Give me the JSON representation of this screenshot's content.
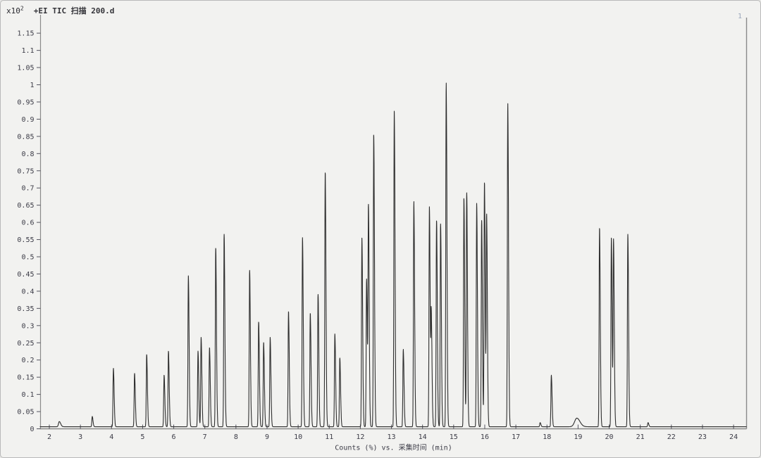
{
  "header": {
    "scale_label": "x10",
    "scale_exponent": "2",
    "title": "+EI TIC 扫描 200.d"
  },
  "pane": {
    "number": "1"
  },
  "axes": {
    "x": {
      "label": "Counts (%) vs. 采集时间 (min)",
      "min": 1.705,
      "max": 24.41,
      "ticks": [
        2,
        3,
        4,
        5,
        6,
        7,
        8,
        9,
        10,
        11,
        12,
        13,
        14,
        15,
        16,
        17,
        18,
        19,
        20,
        21,
        22,
        23,
        24
      ]
    },
    "y": {
      "min": 0,
      "max": 1.198,
      "ticks": [
        {
          "v": 0,
          "label": "0"
        },
        {
          "v": 0.05,
          "label": "0.05"
        },
        {
          "v": 0.1,
          "label": "0.1"
        },
        {
          "v": 0.15,
          "label": "0.15"
        },
        {
          "v": 0.2,
          "label": "0.2"
        },
        {
          "v": 0.25,
          "label": "0.25"
        },
        {
          "v": 0.3,
          "label": "0.3"
        },
        {
          "v": 0.35,
          "label": "0.35"
        },
        {
          "v": 0.4,
          "label": "0.4"
        },
        {
          "v": 0.45,
          "label": "0.45"
        },
        {
          "v": 0.5,
          "label": "0.5"
        },
        {
          "v": 0.55,
          "label": "0.55"
        },
        {
          "v": 0.6,
          "label": "0.6"
        },
        {
          "v": 0.65,
          "label": "0.65"
        },
        {
          "v": 0.7,
          "label": "0.7"
        },
        {
          "v": 0.75,
          "label": "0.75"
        },
        {
          "v": 0.8,
          "label": "0.8"
        },
        {
          "v": 0.85,
          "label": "0.85"
        },
        {
          "v": 0.9,
          "label": "0.9"
        },
        {
          "v": 0.95,
          "label": "0.95"
        },
        {
          "v": 1,
          "label": "1"
        },
        {
          "v": 1.05,
          "label": "1.05"
        },
        {
          "v": 1.1,
          "label": "1.1"
        },
        {
          "v": 1.15,
          "label": "1.15"
        }
      ]
    }
  },
  "chart_data": {
    "type": "line",
    "title": "+EI TIC 扫描 200.d",
    "xlabel": "Counts (%) vs. 采集时间 (min)",
    "ylabel": "Counts (%), x10^2",
    "x_range": [
      1.705,
      24.41
    ],
    "y_range": [
      0,
      1.198
    ],
    "grid": false,
    "baseline": 0.006,
    "sigma_left": 0.013,
    "sigma_right": 0.024,
    "peaks": [
      {
        "rt": 2.32,
        "h": 0.015,
        "sl": 0.025,
        "sr": 0.045
      },
      {
        "rt": 3.38,
        "h": 0.03
      },
      {
        "rt": 4.06,
        "h": 0.17
      },
      {
        "rt": 4.74,
        "h": 0.155
      },
      {
        "rt": 5.13,
        "h": 0.21
      },
      {
        "rt": 5.69,
        "h": 0.15
      },
      {
        "rt": 5.83,
        "h": 0.22
      },
      {
        "rt": 6.47,
        "h": 0.44
      },
      {
        "rt": 6.78,
        "h": 0.22
      },
      {
        "rt": 6.88,
        "h": 0.26
      },
      {
        "rt": 7.15,
        "h": 0.23
      },
      {
        "rt": 7.35,
        "h": 0.52
      },
      {
        "rt": 7.62,
        "h": 0.56
      },
      {
        "rt": 8.44,
        "h": 0.455
      },
      {
        "rt": 8.73,
        "h": 0.305
      },
      {
        "rt": 8.89,
        "h": 0.245
      },
      {
        "rt": 9.1,
        "h": 0.26
      },
      {
        "rt": 9.69,
        "h": 0.335
      },
      {
        "rt": 10.14,
        "h": 0.55
      },
      {
        "rt": 10.39,
        "h": 0.33
      },
      {
        "rt": 10.64,
        "h": 0.385
      },
      {
        "rt": 10.87,
        "h": 0.74
      },
      {
        "rt": 11.18,
        "h": 0.27
      },
      {
        "rt": 11.34,
        "h": 0.2
      },
      {
        "rt": 12.05,
        "h": 0.55
      },
      {
        "rt": 12.2,
        "h": 0.43
      },
      {
        "rt": 12.26,
        "h": 0.63
      },
      {
        "rt": 12.43,
        "h": 0.85
      },
      {
        "rt": 13.09,
        "h": 0.92
      },
      {
        "rt": 13.38,
        "h": 0.225
      },
      {
        "rt": 13.72,
        "h": 0.655
      },
      {
        "rt": 14.22,
        "h": 0.64
      },
      {
        "rt": 14.28,
        "h": 0.32
      },
      {
        "rt": 14.45,
        "h": 0.6
      },
      {
        "rt": 14.58,
        "h": 0.59
      },
      {
        "rt": 14.76,
        "h": 1.0
      },
      {
        "rt": 15.33,
        "h": 0.665
      },
      {
        "rt": 15.42,
        "h": 0.68
      },
      {
        "rt": 15.74,
        "h": 0.65
      },
      {
        "rt": 15.9,
        "h": 0.6
      },
      {
        "rt": 15.99,
        "h": 0.71
      },
      {
        "rt": 16.06,
        "h": 0.61
      },
      {
        "rt": 16.74,
        "h": 0.94
      },
      {
        "rt": 17.78,
        "h": 0.012
      },
      {
        "rt": 18.14,
        "h": 0.15
      },
      {
        "rt": 18.96,
        "h": 0.025,
        "sl": 0.07,
        "sr": 0.1
      },
      {
        "rt": 19.69,
        "h": 0.578
      },
      {
        "rt": 20.07,
        "h": 0.55
      },
      {
        "rt": 20.14,
        "h": 0.54
      },
      {
        "rt": 20.6,
        "h": 0.56
      },
      {
        "rt": 21.25,
        "h": 0.012
      }
    ]
  },
  "colors": {
    "trace": "#2e2e2e",
    "axis": "#8a8a8a",
    "tick_text": "#3b3b46",
    "pane_number": "#9aa7bb",
    "background": "#f2f2f0"
  }
}
